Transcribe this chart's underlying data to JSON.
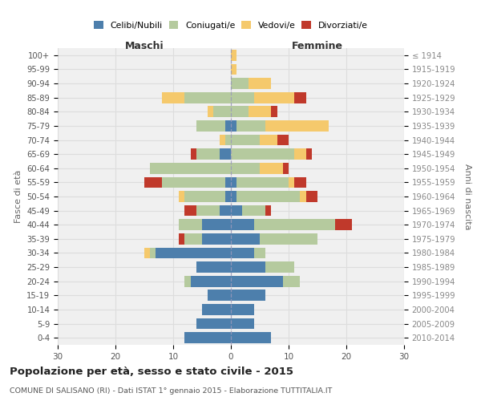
{
  "age_groups": [
    "0-4",
    "5-9",
    "10-14",
    "15-19",
    "20-24",
    "25-29",
    "30-34",
    "35-39",
    "40-44",
    "45-49",
    "50-54",
    "55-59",
    "60-64",
    "65-69",
    "70-74",
    "75-79",
    "80-84",
    "85-89",
    "90-94",
    "95-99",
    "100+"
  ],
  "birth_years": [
    "2010-2014",
    "2005-2009",
    "2000-2004",
    "1995-1999",
    "1990-1994",
    "1985-1989",
    "1980-1984",
    "1975-1979",
    "1970-1974",
    "1965-1969",
    "1960-1964",
    "1955-1959",
    "1950-1954",
    "1945-1949",
    "1940-1944",
    "1935-1939",
    "1930-1934",
    "1925-1929",
    "1920-1924",
    "1915-1919",
    "≤ 1914"
  ],
  "male": {
    "celibi": [
      8,
      6,
      5,
      4,
      7,
      6,
      13,
      5,
      5,
      2,
      1,
      1,
      0,
      2,
      0,
      1,
      0,
      0,
      0,
      0,
      0
    ],
    "coniugati": [
      0,
      0,
      0,
      0,
      1,
      0,
      1,
      3,
      4,
      4,
      7,
      11,
      14,
      4,
      1,
      5,
      3,
      8,
      0,
      0,
      0
    ],
    "vedovi": [
      0,
      0,
      0,
      0,
      0,
      0,
      1,
      0,
      0,
      0,
      1,
      0,
      0,
      0,
      1,
      0,
      1,
      4,
      0,
      0,
      0
    ],
    "divorziati": [
      0,
      0,
      0,
      0,
      0,
      0,
      0,
      1,
      0,
      2,
      0,
      3,
      0,
      1,
      0,
      0,
      0,
      0,
      0,
      0,
      0
    ]
  },
  "female": {
    "nubili": [
      7,
      4,
      4,
      6,
      9,
      6,
      4,
      5,
      4,
      2,
      1,
      1,
      0,
      0,
      0,
      1,
      0,
      0,
      0,
      0,
      0
    ],
    "coniugate": [
      0,
      0,
      0,
      0,
      3,
      5,
      2,
      10,
      14,
      4,
      11,
      9,
      5,
      11,
      5,
      5,
      3,
      4,
      3,
      0,
      0
    ],
    "vedove": [
      0,
      0,
      0,
      0,
      0,
      0,
      0,
      0,
      0,
      0,
      1,
      1,
      4,
      2,
      3,
      11,
      4,
      7,
      4,
      1,
      1
    ],
    "divorziate": [
      0,
      0,
      0,
      0,
      0,
      0,
      0,
      0,
      3,
      1,
      2,
      2,
      1,
      1,
      2,
      0,
      1,
      2,
      0,
      0,
      0
    ]
  },
  "colors": {
    "celibi": "#4d7fac",
    "coniugati": "#b5ca9e",
    "vedovi": "#f5c96c",
    "divorziati": "#c0392b"
  },
  "xlim": 30,
  "title": "Popolazione per età, sesso e stato civile - 2015",
  "subtitle": "COMUNE DI SALISANO (RI) - Dati ISTAT 1° gennaio 2015 - Elaborazione TUTTITALIA.IT",
  "ylabel_left": "Fasce di età",
  "ylabel_right": "Anni di nascita",
  "xlabel_maschi": "Maschi",
  "xlabel_femmine": "Femmine",
  "background_color": "#ffffff",
  "plot_bg": "#f0f0f0",
  "grid_color": "#dddddd"
}
